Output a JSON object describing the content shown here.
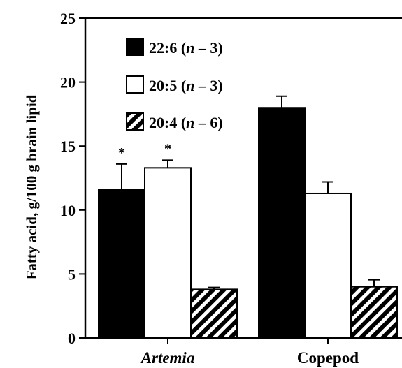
{
  "chart_data": {
    "type": "bar",
    "categories": [
      "Artemia",
      "Copepod"
    ],
    "category_styles": [
      "italic",
      "normal"
    ],
    "ylabel": "Fatty acid, g/100 g brain lipid",
    "xlabel": "",
    "ylim": [
      0,
      25
    ],
    "yticks": [
      0,
      5,
      10,
      15,
      20,
      25
    ],
    "grid": false,
    "legend_position": "top-left",
    "series": [
      {
        "name_prefix": "22:6 (",
        "name_var": "n",
        "name_suffix": " – 3)",
        "fill": "#000000",
        "pattern": "solid",
        "values": [
          11.6,
          18.0
        ],
        "errors": [
          2.0,
          0.9
        ],
        "markers": [
          "*",
          ""
        ]
      },
      {
        "name_prefix": "20:5 (",
        "name_var": "n",
        "name_suffix": " – 3)",
        "fill": "#ffffff",
        "pattern": "open",
        "values": [
          13.3,
          11.3
        ],
        "errors": [
          0.6,
          0.9
        ],
        "markers": [
          "*",
          ""
        ]
      },
      {
        "name_prefix": "20:4 (",
        "name_var": "n",
        "name_suffix": " – 6)",
        "fill": "#000000",
        "pattern": "hatched",
        "values": [
          3.8,
          4.0
        ],
        "errors": [
          0.15,
          0.55
        ],
        "markers": [
          "",
          ""
        ]
      }
    ]
  }
}
